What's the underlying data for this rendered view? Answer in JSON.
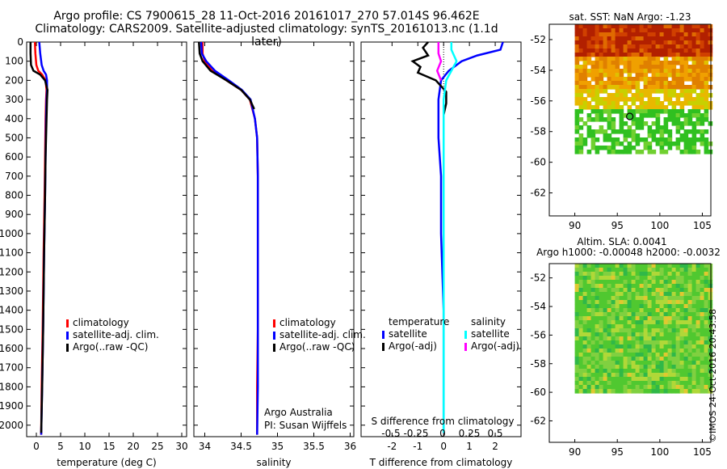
{
  "header": {
    "line1": "Argo profile: CS 7900615_28 11-Oct-2016 20161017_270 57.014S 96.462E",
    "line2": "Climatology: CARS2009. Satellite-adjusted climatology: synTS_20161013.nc (1.1d later)"
  },
  "footer": {
    "credit": "Argo Australia",
    "pi": "PI: Susan Wijffels",
    "stamp": "©IMOS 24-Oct-2016 20:43:58"
  },
  "colors": {
    "climatology": "#ff0000",
    "satellite": "#0000ff",
    "argo": "#000000",
    "sat_salinity": "#00ffff",
    "argo_salinity": "#ff00ff"
  },
  "chart_data": [
    {
      "type": "line",
      "name": "temperature",
      "xlabel": "temperature (deg C)",
      "ylabel": "",
      "xlim": [
        -2,
        31
      ],
      "ylim": [
        2060,
        0
      ],
      "xticks": [
        0,
        5,
        10,
        15,
        20,
        25,
        30
      ],
      "yticks": [
        0,
        100,
        200,
        300,
        400,
        500,
        600,
        700,
        800,
        900,
        1000,
        1100,
        1200,
        1300,
        1400,
        1500,
        1600,
        1700,
        1800,
        1900,
        2000
      ],
      "legend": [
        "climatology",
        "satellite-adj. clim.",
        "Argo(..raw -QC)"
      ],
      "series": [
        {
          "name": "climatology",
          "color": "#ff0000",
          "x": [
            -0.3,
            -0.2,
            0.0,
            0.4,
            1.2,
            1.9,
            2.1,
            2.0,
            1.9,
            1.8,
            1.7,
            1.5,
            1.3,
            1.1,
            1.0
          ],
          "y": [
            0,
            60,
            120,
            150,
            170,
            200,
            250,
            300,
            400,
            600,
            800,
            1100,
            1500,
            1800,
            2050
          ]
        },
        {
          "name": "satellite-adj. clim.",
          "color": "#0000ff",
          "x": [
            0.6,
            0.8,
            1.1,
            1.5,
            2.0,
            2.2,
            2.2,
            2.1,
            2.0,
            1.9,
            1.8,
            1.6,
            1.4,
            1.2,
            1.0
          ],
          "y": [
            0,
            60,
            120,
            150,
            170,
            200,
            250,
            300,
            400,
            600,
            800,
            1100,
            1500,
            1800,
            2050
          ]
        },
        {
          "name": "Argo(..raw -QC)",
          "color": "#000000",
          "x": [
            -1.2,
            -1.2,
            -1.1,
            -0.6,
            0.8,
            1.8,
            2.3,
            2.2,
            2.1,
            1.9,
            1.8,
            1.6,
            1.4,
            1.2,
            1.0
          ],
          "y": [
            0,
            60,
            120,
            150,
            170,
            200,
            250,
            300,
            400,
            600,
            800,
            1100,
            1500,
            1800,
            2040
          ]
        }
      ]
    },
    {
      "type": "line",
      "name": "salinity",
      "xlabel": "salinity",
      "ylabel": "",
      "xlim": [
        33.85,
        36.05
      ],
      "ylim": [
        2060,
        0
      ],
      "xticks": [
        34,
        34.5,
        35,
        35.5,
        36
      ],
      "legend": [
        "climatology",
        "satellite-adj. clim.",
        "Argo(..raw -QC)"
      ],
      "series": [
        {
          "name": "climatology",
          "color": "#ff0000",
          "x": [
            33.97,
            33.97,
            34.0,
            34.1,
            34.3,
            34.5,
            34.62,
            34.69,
            34.72,
            34.73,
            34.73,
            34.73,
            34.73,
            34.72,
            34.72
          ],
          "y": [
            0,
            60,
            100,
            150,
            200,
            250,
            300,
            400,
            500,
            700,
            900,
            1200,
            1500,
            1800,
            2050
          ]
        },
        {
          "name": "satellite-adj. clim.",
          "color": "#0000ff",
          "x": [
            33.95,
            33.96,
            34.02,
            34.14,
            34.33,
            34.51,
            34.63,
            34.69,
            34.72,
            34.73,
            34.73,
            34.73,
            34.73,
            34.73,
            34.72
          ],
          "y": [
            0,
            60,
            100,
            150,
            200,
            250,
            300,
            400,
            500,
            700,
            900,
            1200,
            1500,
            1800,
            2050
          ]
        },
        {
          "name": "Argo(..raw -QC)",
          "color": "#000000",
          "x": [
            33.92,
            33.93,
            33.97,
            34.08,
            34.3,
            34.5,
            34.62,
            34.68
          ],
          "y": [
            0,
            60,
            100,
            150,
            200,
            250,
            300,
            350
          ]
        }
      ]
    },
    {
      "type": "line",
      "name": "difference",
      "xlabel": "T difference from climatology",
      "top_xlabel": "S difference from climatology",
      "xlim": [
        -3.2,
        3.0
      ],
      "ylim": [
        2060,
        0
      ],
      "xticks": [
        -2,
        -1,
        0,
        1,
        2
      ],
      "top_xticks": [
        "-0.5",
        "-0.25",
        "0",
        "0.25",
        "0.5"
      ],
      "legend_temperature_title": "temperature",
      "legend_salinity_title": "salinity",
      "legend": [
        "satellite",
        "Argo(-adj)",
        "satellite",
        "Argo(-adj)"
      ],
      "series": [
        {
          "name": "satellite",
          "group": "temperature",
          "color": "#0000ff",
          "x": [
            2.3,
            2.2,
            1.3,
            0.7,
            0.2,
            -0.1,
            -0.2,
            -0.2,
            -0.1,
            -0.1,
            0.0,
            0.0,
            0.0
          ],
          "y": [
            0,
            40,
            70,
            100,
            150,
            200,
            300,
            500,
            700,
            1000,
            1400,
            1800,
            2040
          ]
        },
        {
          "name": "Argo(-adj)",
          "group": "temperature",
          "color": "#000000",
          "x": [
            -0.6,
            -0.8,
            -0.6,
            -1.2,
            -0.9,
            -1.0,
            -0.3,
            0.1,
            0.1,
            0.0
          ],
          "y": [
            0,
            30,
            70,
            100,
            130,
            160,
            200,
            260,
            320,
            380
          ]
        },
        {
          "name": "satellite",
          "group": "salinity",
          "color": "#00ffff",
          "x": [
            0.3,
            0.3,
            0.5,
            0.3,
            0.1,
            0.0,
            0.0,
            0.0,
            0.0,
            0.0,
            0.0
          ],
          "y": [
            0,
            40,
            100,
            150,
            200,
            300,
            500,
            800,
            1200,
            1600,
            2040
          ]
        },
        {
          "name": "Argo(-adj)",
          "group": "salinity",
          "color": "#ff00ff",
          "x": [
            -0.2,
            -0.2,
            -0.1,
            -0.25,
            -0.1
          ],
          "y": [
            0,
            60,
            100,
            150,
            200
          ]
        }
      ]
    },
    {
      "type": "heatmap",
      "name": "sst-map",
      "title": "sat. SST: NaN Argo: -1.23",
      "xticks": [
        90,
        95,
        100,
        105
      ],
      "yticks": [
        -52,
        -54,
        -56,
        -58,
        -60,
        -62
      ],
      "xlim": [
        87,
        106
      ],
      "ylim": [
        -63.5,
        -51
      ],
      "argo_position": [
        96.462,
        -57.014
      ]
    },
    {
      "type": "heatmap",
      "name": "sla-map",
      "title_line1": "Altim. SLA: 0.0041",
      "title_line2": "Argo h1000: -0.00048 h2000: -0.0032",
      "xticks": [
        90,
        95,
        100,
        105
      ],
      "yticks": [
        -52,
        -54,
        -56,
        -58,
        -60,
        -62
      ],
      "xlim": [
        87,
        106
      ],
      "ylim": [
        -63.5,
        -51
      ]
    }
  ]
}
